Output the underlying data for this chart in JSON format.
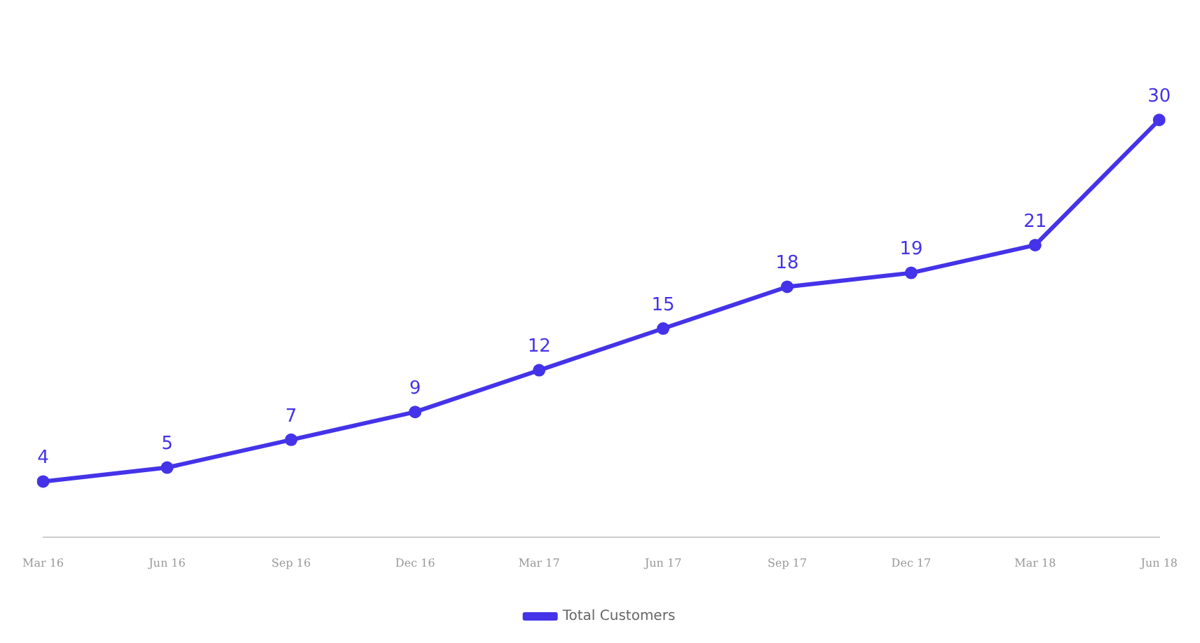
{
  "chart_data": {
    "type": "line",
    "categories": [
      "Mar 16",
      "Jun 16",
      "Sep 16",
      "Dec 16",
      "Mar 17",
      "Jun 17",
      "Sep 17",
      "Dec 17",
      "Mar 18",
      "Jun 18"
    ],
    "series": [
      {
        "name": "Total Customers",
        "color": "#4433e8",
        "values": [
          4,
          5,
          7,
          9,
          12,
          15,
          18,
          19,
          21,
          30
        ]
      }
    ],
    "data_labels": true,
    "marker": "circle",
    "line_style": "solid",
    "grid": false,
    "legend": "bottom",
    "tick_labels": "x"
  }
}
